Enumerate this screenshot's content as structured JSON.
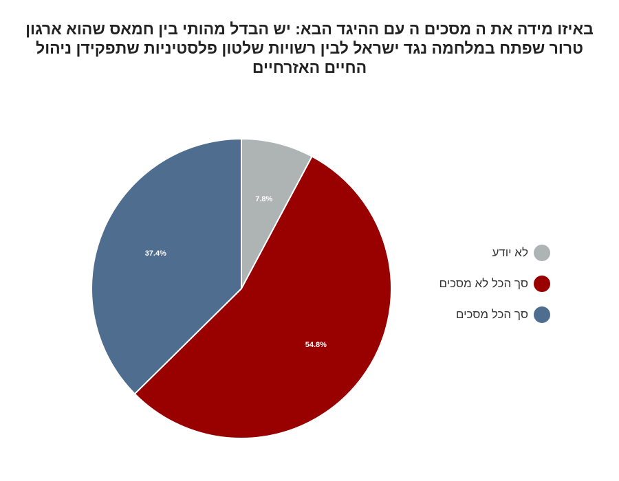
{
  "chart_data": {
    "type": "pie",
    "title": "באיזו מידה את ה מסכים ה עם ההיגד הבא: יש הבדל מהותי בין חמאס שהוא ארגון טרור שפתח במלחמה נגד ישראל לבין רשויות שלטון פלסטיניות שתפקידן ניהול החיים האזרחיים",
    "categories": [
      "לא יודע",
      "סך הכל לא מסכים",
      "סך הכל מסכים"
    ],
    "values": [
      7.8,
      54.8,
      37.4
    ],
    "labels": [
      "7.8%",
      "54.8%",
      "37.4%"
    ],
    "colors": [
      "#aeb3b3",
      "#990000",
      "#4f6d8f"
    ],
    "start": "top, clockwise",
    "legend_position": "right"
  }
}
